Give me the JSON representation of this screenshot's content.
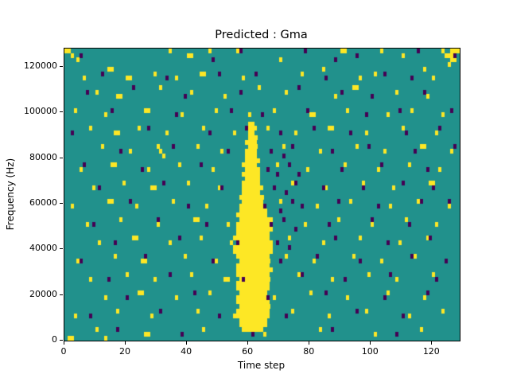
{
  "chart_data": {
    "type": "heatmap",
    "title": "Predicted : Gma",
    "xlabel": "Time step",
    "ylabel": "Frequency (Hz)",
    "x_max": 129,
    "y_max": 128000,
    "x_ticks": [
      0,
      20,
      40,
      60,
      80,
      100,
      120
    ],
    "y_ticks": [
      0,
      20000,
      40000,
      60000,
      80000,
      100000,
      120000
    ],
    "grid": {
      "cols": 129,
      "rows": 64,
      "hz_per_row": 2000,
      "gridlines": false
    },
    "legend": "none",
    "colors": {
      "background": "#21918c",
      "high": "#fde725",
      "low": "#440154",
      "axes": "#000000",
      "figure_background": "#ffffff"
    },
    "band": {
      "description": "dense vertical high-value band centered near time step 61 spanning ~4000-96000 Hz",
      "row_start": 2,
      "spans": [
        [
          58,
          64
        ],
        [
          57,
          65
        ],
        [
          57,
          65
        ],
        [
          56,
          66
        ],
        [
          56,
          66
        ],
        [
          57,
          66
        ],
        [
          56,
          66
        ],
        [
          56,
          66
        ],
        [
          57,
          65
        ],
        [
          56,
          66
        ],
        [
          56,
          66
        ],
        [
          57,
          66
        ],
        [
          56,
          66
        ],
        [
          56,
          67
        ],
        [
          56,
          66
        ],
        [
          57,
          66
        ],
        [
          56,
          66
        ],
        [
          55,
          67
        ],
        [
          55,
          67
        ],
        [
          56,
          67
        ],
        [
          55,
          66
        ],
        [
          56,
          66
        ],
        [
          56,
          67
        ],
        [
          56,
          66
        ],
        [
          57,
          66
        ],
        [
          56,
          65
        ],
        [
          57,
          65
        ],
        [
          57,
          64
        ],
        [
          58,
          64
        ],
        [
          57,
          64
        ],
        [
          58,
          63
        ],
        [
          58,
          64
        ],
        [
          58,
          63
        ],
        [
          59,
          63
        ],
        [
          58,
          63
        ],
        [
          59,
          63
        ],
        [
          58,
          62
        ],
        [
          59,
          63
        ],
        [
          59,
          62
        ],
        [
          59,
          62
        ],
        [
          60,
          62
        ],
        [
          59,
          62
        ],
        [
          60,
          62
        ],
        [
          60,
          61
        ],
        [
          59,
          62
        ],
        [
          60,
          61
        ]
      ]
    },
    "high_cells": [
      [
        0,
        63,
        2
      ],
      [
        2,
        62
      ],
      [
        4,
        61
      ],
      [
        14,
        59,
        2
      ],
      [
        34,
        63
      ],
      [
        40,
        62,
        2
      ],
      [
        47,
        63
      ],
      [
        56,
        63
      ],
      [
        70,
        61
      ],
      [
        84,
        59
      ],
      [
        90,
        63,
        2
      ],
      [
        103,
        63
      ],
      [
        110,
        62
      ],
      [
        117,
        59
      ],
      [
        123,
        63
      ],
      [
        124,
        62,
        3
      ],
      [
        126,
        63,
        3
      ],
      [
        126,
        61,
        2
      ],
      [
        125,
        60
      ],
      [
        6,
        57
      ],
      [
        20,
        57,
        2
      ],
      [
        29,
        58
      ],
      [
        36,
        57
      ],
      [
        44,
        58,
        2
      ],
      [
        58,
        57
      ],
      [
        77,
        58
      ],
      [
        96,
        57
      ],
      [
        101,
        58
      ],
      [
        120,
        57
      ],
      [
        10,
        54
      ],
      [
        17,
        53,
        2
      ],
      [
        31,
        55
      ],
      [
        41,
        54
      ],
      [
        52,
        53
      ],
      [
        63,
        55
      ],
      [
        72,
        54
      ],
      [
        88,
        53
      ],
      [
        94,
        55,
        2
      ],
      [
        108,
        54
      ],
      [
        118,
        53
      ],
      [
        3,
        50
      ],
      [
        13,
        49
      ],
      [
        26,
        50,
        2
      ],
      [
        38,
        49
      ],
      [
        49,
        50
      ],
      [
        60,
        49
      ],
      [
        68,
        50
      ],
      [
        80,
        49,
        2
      ],
      [
        92,
        50
      ],
      [
        105,
        49
      ],
      [
        113,
        50
      ],
      [
        123,
        49
      ],
      [
        8,
        46
      ],
      [
        16,
        45,
        2
      ],
      [
        24,
        46
      ],
      [
        33,
        45
      ],
      [
        45,
        46
      ],
      [
        55,
        45
      ],
      [
        66,
        46
      ],
      [
        75,
        45
      ],
      [
        86,
        46,
        2
      ],
      [
        98,
        45
      ],
      [
        110,
        46
      ],
      [
        121,
        45
      ],
      [
        30,
        42
      ],
      [
        31,
        41
      ],
      [
        32,
        40
      ],
      [
        12,
        42
      ],
      [
        21,
        41
      ],
      [
        43,
        42
      ],
      [
        51,
        41
      ],
      [
        71,
        42
      ],
      [
        83,
        41
      ],
      [
        95,
        42
      ],
      [
        104,
        41
      ],
      [
        116,
        42,
        2
      ],
      [
        126,
        41
      ],
      [
        5,
        37
      ],
      [
        15,
        38,
        2
      ],
      [
        27,
        37
      ],
      [
        37,
        38
      ],
      [
        48,
        37
      ],
      [
        69,
        38
      ],
      [
        79,
        37
      ],
      [
        91,
        38
      ],
      [
        102,
        37
      ],
      [
        112,
        38
      ],
      [
        122,
        37
      ],
      [
        9,
        33
      ],
      [
        19,
        34
      ],
      [
        28,
        33,
        2
      ],
      [
        40,
        34
      ],
      [
        50,
        33
      ],
      [
        74,
        34
      ],
      [
        85,
        33
      ],
      [
        97,
        34
      ],
      [
        107,
        33
      ],
      [
        119,
        34,
        2
      ],
      [
        2,
        29
      ],
      [
        14,
        30,
        2
      ],
      [
        23,
        29
      ],
      [
        35,
        30
      ],
      [
        46,
        29
      ],
      [
        70,
        30
      ],
      [
        82,
        29
      ],
      [
        93,
        30
      ],
      [
        106,
        29
      ],
      [
        115,
        30
      ],
      [
        125,
        29
      ],
      [
        7,
        25
      ],
      [
        18,
        26
      ],
      [
        30,
        25
      ],
      [
        42,
        26,
        2
      ],
      [
        53,
        25
      ],
      [
        67,
        26
      ],
      [
        78,
        25
      ],
      [
        89,
        26
      ],
      [
        100,
        25
      ],
      [
        111,
        26
      ],
      [
        121,
        25
      ],
      [
        11,
        21
      ],
      [
        22,
        22,
        2
      ],
      [
        34,
        21
      ],
      [
        44,
        22
      ],
      [
        54,
        21
      ],
      [
        73,
        22
      ],
      [
        84,
        21
      ],
      [
        96,
        22
      ],
      [
        109,
        21
      ],
      [
        118,
        22
      ],
      [
        4,
        17
      ],
      [
        16,
        18
      ],
      [
        25,
        17,
        2
      ],
      [
        39,
        18
      ],
      [
        49,
        17
      ],
      [
        72,
        18
      ],
      [
        81,
        17
      ],
      [
        94,
        18
      ],
      [
        103,
        17
      ],
      [
        114,
        18
      ],
      [
        124,
        17
      ],
      [
        8,
        13
      ],
      [
        20,
        14
      ],
      [
        29,
        13
      ],
      [
        41,
        14
      ],
      [
        52,
        13,
        2
      ],
      [
        76,
        14
      ],
      [
        87,
        13
      ],
      [
        99,
        14
      ],
      [
        108,
        13
      ],
      [
        120,
        14
      ],
      [
        13,
        9
      ],
      [
        24,
        10,
        2
      ],
      [
        36,
        9
      ],
      [
        47,
        10
      ],
      [
        68,
        9
      ],
      [
        80,
        10
      ],
      [
        92,
        9
      ],
      [
        105,
        10
      ],
      [
        117,
        9
      ],
      [
        3,
        5
      ],
      [
        17,
        6
      ],
      [
        28,
        5
      ],
      [
        43,
        6
      ],
      [
        55,
        5
      ],
      [
        74,
        6
      ],
      [
        86,
        5
      ],
      [
        98,
        6
      ],
      [
        112,
        5
      ],
      [
        123,
        6
      ],
      [
        1,
        0,
        2
      ],
      [
        13,
        0
      ],
      [
        10,
        2
      ],
      [
        26,
        1,
        2
      ],
      [
        45,
        2
      ],
      [
        65,
        1
      ],
      [
        83,
        2
      ],
      [
        101,
        1
      ],
      [
        116,
        2
      ]
    ],
    "low_cells": [
      [
        57,
        63
      ],
      [
        95,
        62
      ],
      [
        5,
        62
      ],
      [
        48,
        61
      ],
      [
        78,
        63
      ],
      [
        88,
        61
      ],
      [
        115,
        63
      ],
      [
        127,
        62
      ],
      [
        12,
        58
      ],
      [
        33,
        57
      ],
      [
        50,
        58
      ],
      [
        62,
        58
      ],
      [
        85,
        57
      ],
      [
        104,
        58
      ],
      [
        113,
        57
      ],
      [
        7,
        54
      ],
      [
        22,
        55
      ],
      [
        39,
        53
      ],
      [
        57,
        54
      ],
      [
        76,
        55
      ],
      [
        90,
        54
      ],
      [
        100,
        53
      ],
      [
        117,
        54
      ],
      [
        15,
        50
      ],
      [
        36,
        49
      ],
      [
        54,
        50
      ],
      [
        64,
        49
      ],
      [
        79,
        50
      ],
      [
        98,
        49
      ],
      [
        109,
        50
      ],
      [
        126,
        50
      ],
      [
        2,
        45
      ],
      [
        27,
        46
      ],
      [
        47,
        45
      ],
      [
        59,
        46
      ],
      [
        70,
        45
      ],
      [
        81,
        46
      ],
      [
        93,
        45
      ],
      [
        111,
        45
      ],
      [
        122,
        46
      ],
      [
        18,
        41
      ],
      [
        35,
        42
      ],
      [
        53,
        41
      ],
      [
        67,
        41
      ],
      [
        71,
        40
      ],
      [
        74,
        42
      ],
      [
        87,
        41
      ],
      [
        99,
        42
      ],
      [
        114,
        41
      ],
      [
        127,
        42
      ],
      [
        6,
        38
      ],
      [
        25,
        37
      ],
      [
        44,
        38
      ],
      [
        66,
        37
      ],
      [
        69,
        36
      ],
      [
        73,
        38
      ],
      [
        76,
        36
      ],
      [
        90,
        37
      ],
      [
        103,
        38
      ],
      [
        118,
        37
      ],
      [
        11,
        33
      ],
      [
        32,
        34
      ],
      [
        51,
        33
      ],
      [
        68,
        33
      ],
      [
        72,
        32
      ],
      [
        75,
        34
      ],
      [
        84,
        33
      ],
      [
        97,
        33
      ],
      [
        110,
        34
      ],
      [
        120,
        33
      ],
      [
        21,
        30
      ],
      [
        40,
        29
      ],
      [
        65,
        29
      ],
      [
        70,
        28
      ],
      [
        74,
        30
      ],
      [
        77,
        29
      ],
      [
        89,
        30
      ],
      [
        102,
        29
      ],
      [
        116,
        30
      ],
      [
        125,
        30
      ],
      [
        9,
        25
      ],
      [
        30,
        26
      ],
      [
        46,
        25
      ],
      [
        67,
        25
      ],
      [
        71,
        26
      ],
      [
        75,
        24
      ],
      [
        86,
        25
      ],
      [
        100,
        26
      ],
      [
        112,
        25
      ],
      [
        16,
        21
      ],
      [
        37,
        22
      ],
      [
        56,
        21
      ],
      [
        69,
        21
      ],
      [
        73,
        20
      ],
      [
        88,
        22
      ],
      [
        105,
        21
      ],
      [
        119,
        22
      ],
      [
        5,
        17
      ],
      [
        26,
        18
      ],
      [
        48,
        17
      ],
      [
        70,
        17
      ],
      [
        82,
        18
      ],
      [
        96,
        17
      ],
      [
        113,
        18
      ],
      [
        124,
        17
      ],
      [
        14,
        13
      ],
      [
        34,
        14
      ],
      [
        58,
        13
      ],
      [
        77,
        14
      ],
      [
        91,
        13
      ],
      [
        106,
        14
      ],
      [
        121,
        13
      ],
      [
        20,
        9
      ],
      [
        42,
        10
      ],
      [
        66,
        9
      ],
      [
        85,
        10
      ],
      [
        104,
        9
      ],
      [
        118,
        10
      ],
      [
        8,
        5
      ],
      [
        31,
        6
      ],
      [
        50,
        5
      ],
      [
        72,
        5
      ],
      [
        95,
        6
      ],
      [
        110,
        5
      ],
      [
        17,
        2
      ],
      [
        38,
        1
      ],
      [
        61,
        1
      ],
      [
        87,
        2
      ],
      [
        108,
        1
      ]
    ]
  }
}
